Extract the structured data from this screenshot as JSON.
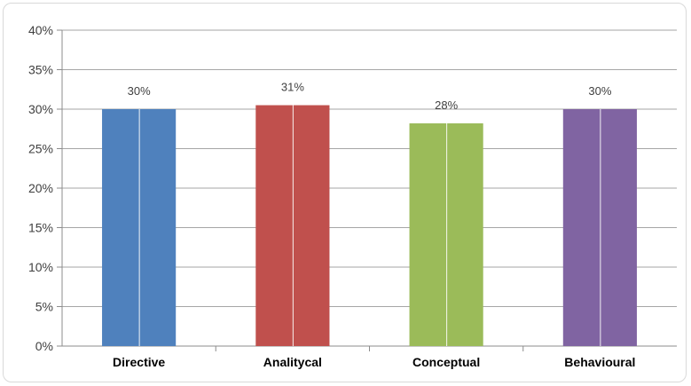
{
  "chart_data": {
    "type": "bar",
    "categories": [
      "Directive",
      "Analitycal",
      "Conceptual",
      "Behavioural"
    ],
    "values": [
      30,
      30.5,
      28.2,
      30
    ],
    "data_labels": [
      "30%",
      "31%",
      "28%",
      "30%"
    ],
    "colors": [
      "#4f81bd",
      "#c0504d",
      "#9bbb59",
      "#8064a2"
    ],
    "ylim": [
      0,
      40
    ],
    "yticks": [
      0,
      5,
      10,
      15,
      20,
      25,
      30,
      35,
      40
    ],
    "ytick_labels": [
      "0%",
      "5%",
      "10%",
      "15%",
      "20%",
      "25%",
      "30%",
      "35%",
      "40%"
    ],
    "title": "",
    "xlabel": "",
    "ylabel": "",
    "grid": true,
    "legend": "none"
  }
}
